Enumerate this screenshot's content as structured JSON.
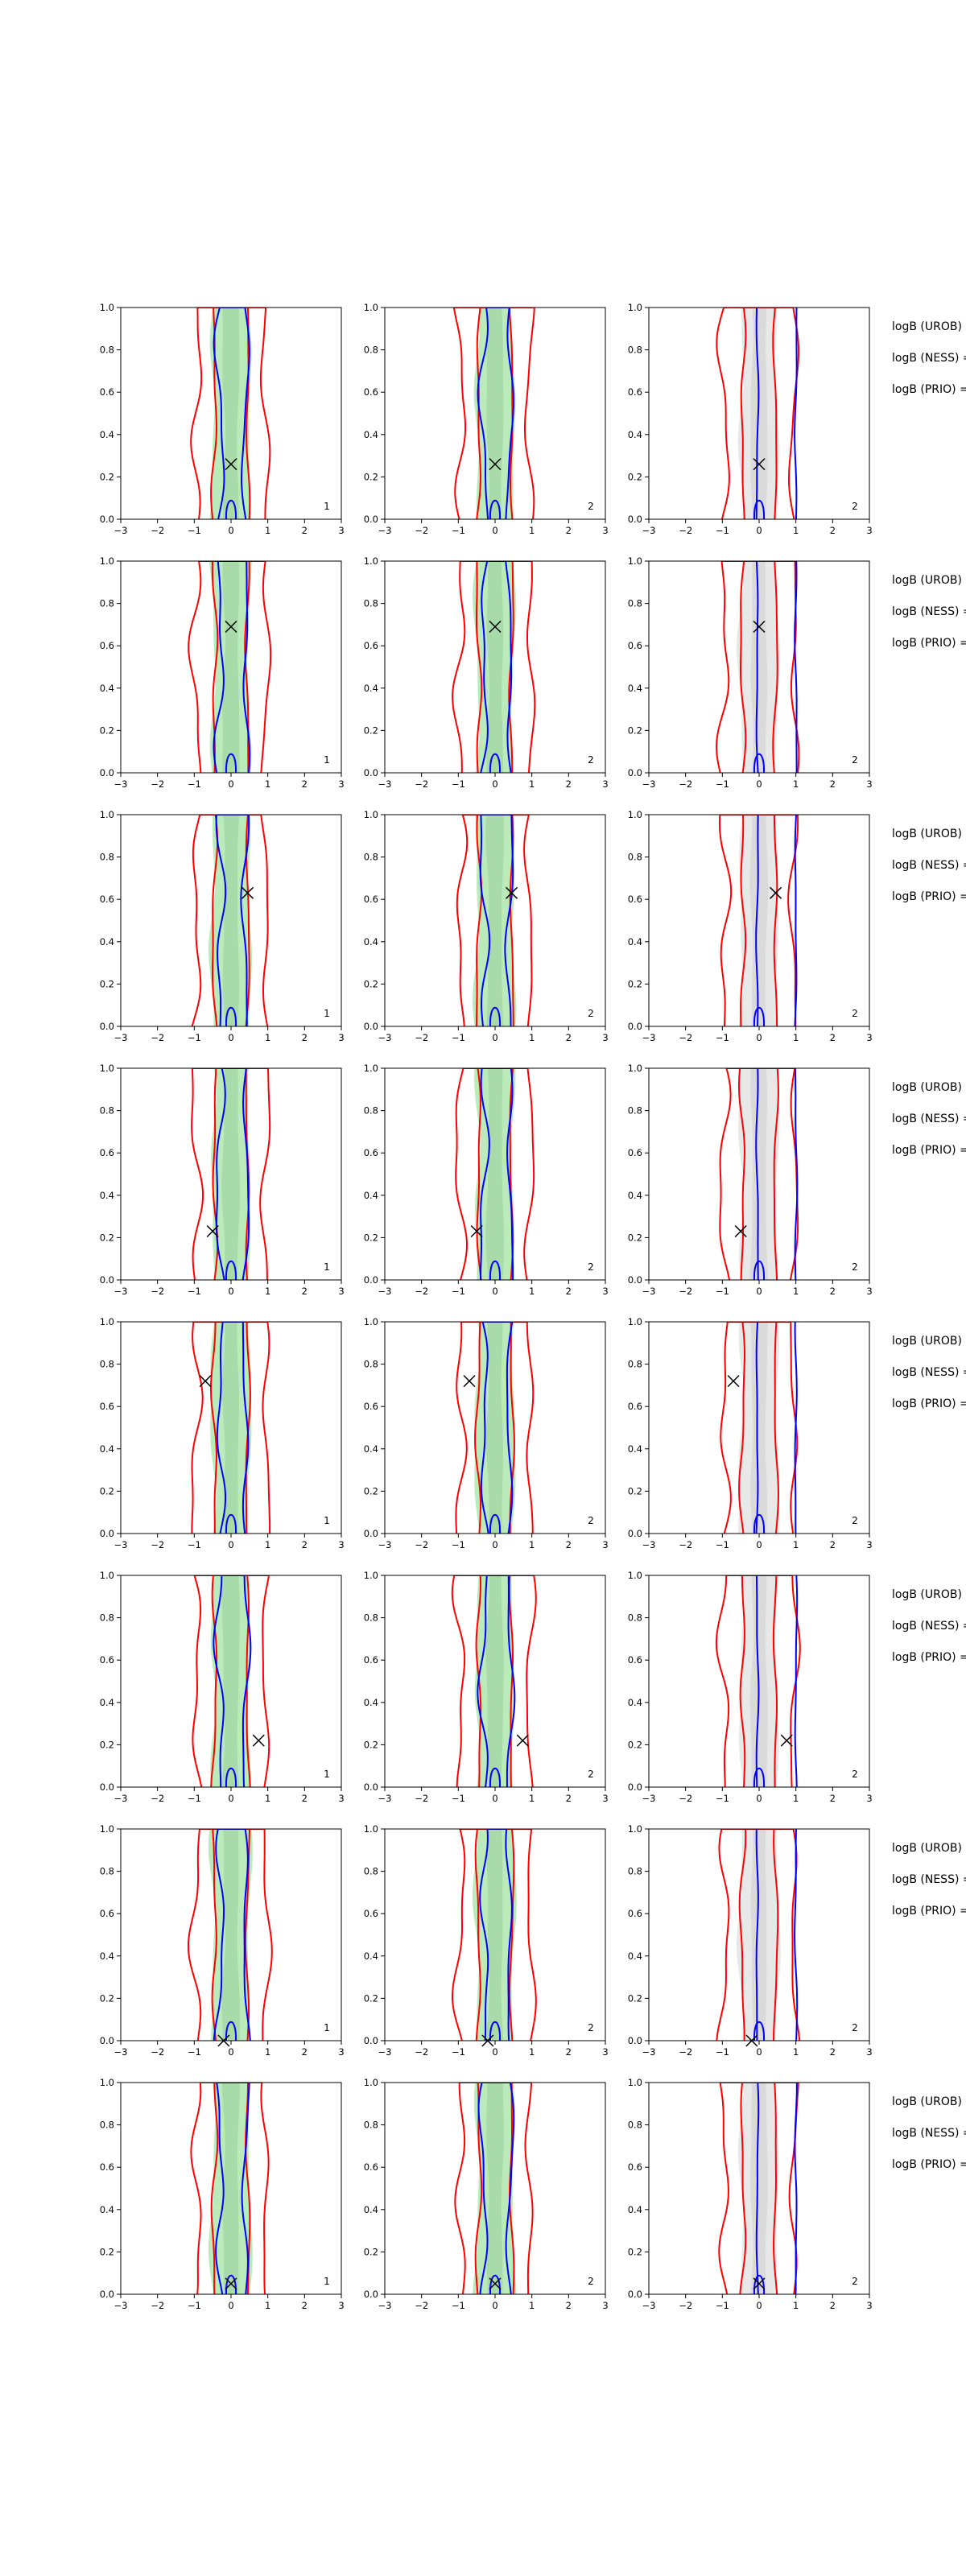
{
  "chart_data": {
    "type": "contour",
    "xlim": [
      -3,
      3
    ],
    "ylim": [
      0,
      1
    ],
    "xticks": [
      "−3",
      "−2",
      "−1",
      "0",
      "1",
      "2",
      "3"
    ],
    "yticks": [
      "0.0",
      "0.2",
      "0.4",
      "0.6",
      "0.8",
      "1.0"
    ],
    "grid": false,
    "side_labels": [
      "logB (UROB) =",
      "logB (NESS) =",
      "logB (PRIO) ="
    ],
    "columns": [
      {
        "panel_number": "1",
        "shading": "green"
      },
      {
        "panel_number": "2",
        "shading": "green"
      },
      {
        "panel_number": "2",
        "shading": "gray"
      }
    ],
    "colors": {
      "inner_contour": "#0000ff",
      "outer_contour": "#ff0000",
      "green_fill": "#b4e8b4",
      "gray_fill": "#e6e6e6",
      "marker": "#000000"
    },
    "rows": [
      {
        "marker": {
          "x": 0.0,
          "y": 0.26
        }
      },
      {
        "marker": {
          "x": 0.0,
          "y": 0.69
        }
      },
      {
        "marker": {
          "x": 0.45,
          "y": 0.63
        }
      },
      {
        "marker": {
          "x": -0.5,
          "y": 0.23
        }
      },
      {
        "marker": {
          "x": -0.7,
          "y": 0.72
        }
      },
      {
        "marker": {
          "x": 0.75,
          "y": 0.22
        }
      },
      {
        "marker": {
          "x": -0.2,
          "y": 0.0
        }
      },
      {
        "marker": {
          "x": 0.0,
          "y": 0.05
        }
      }
    ]
  }
}
